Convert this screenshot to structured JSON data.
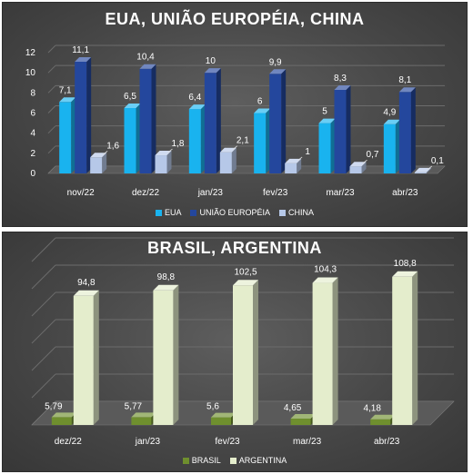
{
  "chart_data": [
    {
      "type": "bar",
      "title": "EUA, UNIÃO EUROPÉIA, CHINA",
      "categories": [
        "nov/22",
        "dez/22",
        "jan/23",
        "fev/23",
        "mar/23",
        "abr/23"
      ],
      "yticks": [
        "0",
        "2",
        "4",
        "6",
        "8",
        "10",
        "12"
      ],
      "ylim": [
        0,
        12
      ],
      "grid": true,
      "legend_position": "bottom",
      "series": [
        {
          "name": "EUA",
          "color": "#19b3ef",
          "values": [
            7.1,
            6.5,
            6.4,
            6,
            5,
            4.9
          ],
          "labels": [
            "7,1",
            "6,5",
            "6,4",
            "6",
            "5",
            "4,9"
          ]
        },
        {
          "name": "UNIÃO EUROPÉIA",
          "color": "#24479d",
          "values": [
            11.1,
            10.4,
            10,
            9.9,
            8.3,
            8.1
          ],
          "labels": [
            "11,1",
            "10,4",
            "10",
            "9,9",
            "8,3",
            "8,1"
          ]
        },
        {
          "name": "CHINA",
          "color": "#b6c8e8",
          "values": [
            1.6,
            1.8,
            2.1,
            1,
            0.7,
            0.1
          ],
          "labels": [
            "1,6",
            "1,8",
            "2,1",
            "1",
            "0,7",
            "0,1"
          ]
        }
      ]
    },
    {
      "type": "bar",
      "title": "BRASIL, ARGENTINA",
      "categories": [
        "dez/22",
        "jan/23",
        "fev/23",
        "mar/23",
        "abr/23"
      ],
      "ylim": [
        0,
        120
      ],
      "grid": true,
      "legend_position": "bottom",
      "series": [
        {
          "name": "BRASIL",
          "color": "#6f8f2e",
          "values": [
            5.79,
            5.77,
            5.6,
            4.65,
            4.18
          ],
          "labels": [
            "5,79",
            "5,77",
            "5,6",
            "4,65",
            "4,18"
          ]
        },
        {
          "name": "ARGENTINA",
          "color": "#e4edcc",
          "values": [
            94.8,
            98.8,
            102.5,
            104.3,
            108.8
          ],
          "labels": [
            "94,8",
            "98,8",
            "102,5",
            "104,3",
            "108,8"
          ]
        }
      ]
    }
  ]
}
